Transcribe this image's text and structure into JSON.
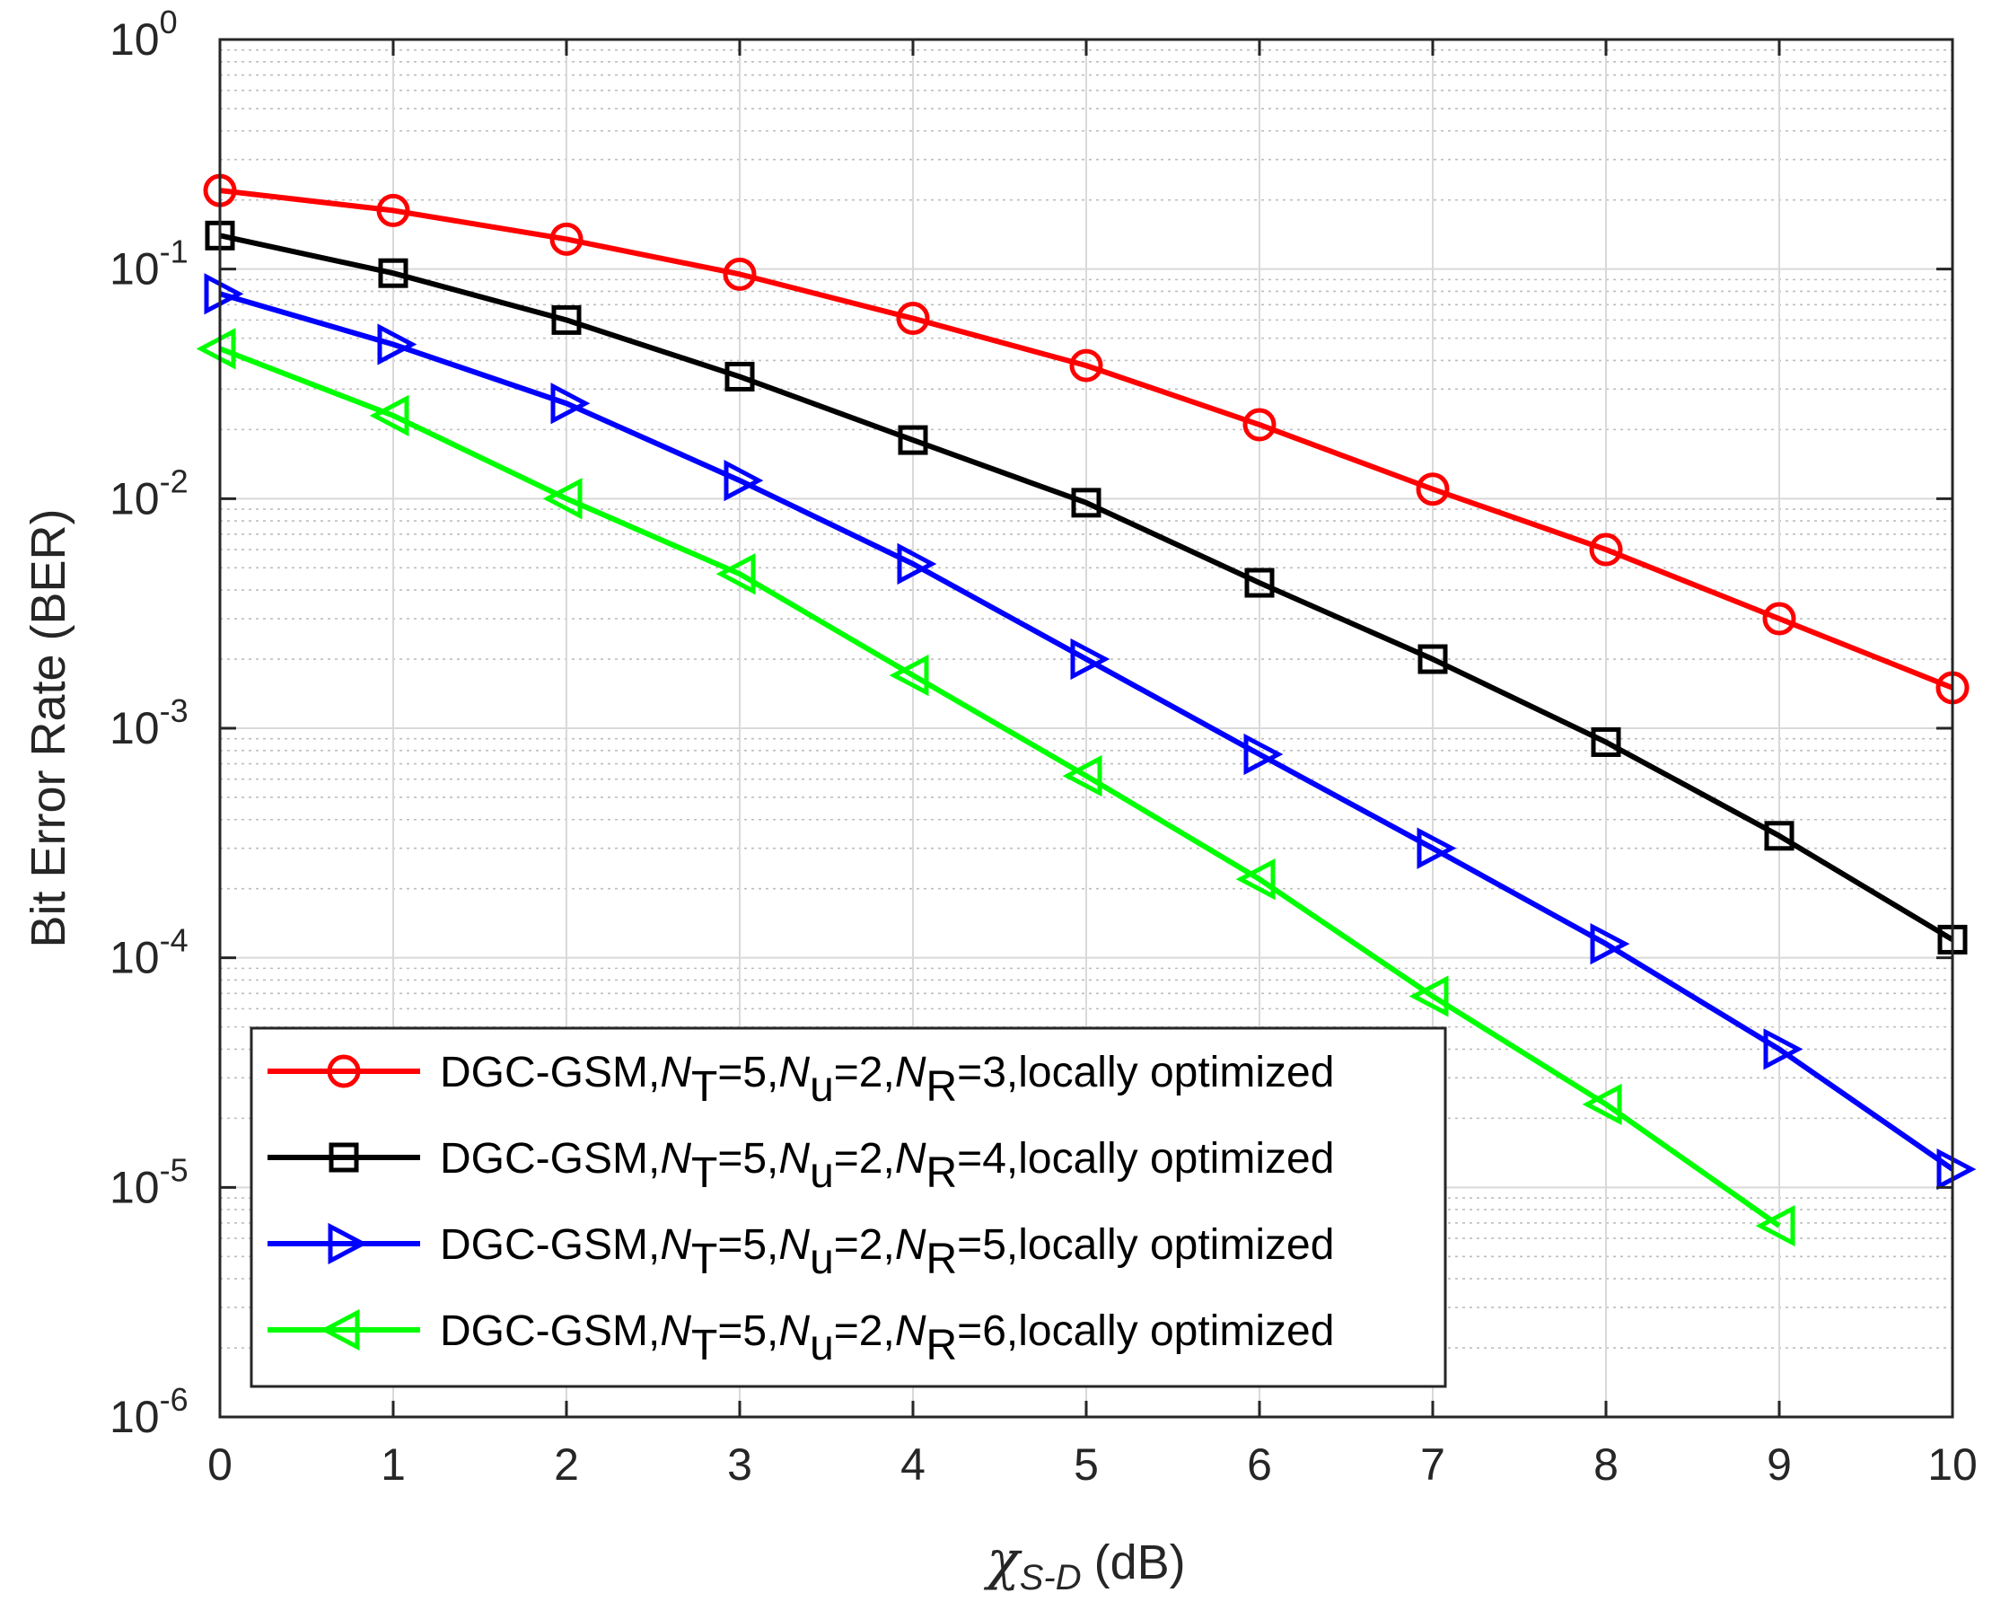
{
  "chart_data": {
    "type": "line",
    "title": "",
    "xlabel": {
      "symbol": "χ",
      "subscript": "S-D",
      "unit": "(dB)"
    },
    "ylabel": "Bit Error Rate (BER)",
    "xlim": [
      0,
      10
    ],
    "ylim": [
      1e-06,
      1
    ],
    "yscale": "log",
    "grid": true,
    "minor_grid": true,
    "legend_position": "bottom-left",
    "x_ticks": [
      "0",
      "1",
      "2",
      "3",
      "4",
      "5",
      "6",
      "7",
      "8",
      "9",
      "10"
    ],
    "y_ticks": [
      {
        "base": "10",
        "exp": "0"
      },
      {
        "base": "10",
        "exp": "-1"
      },
      {
        "base": "10",
        "exp": "-2"
      },
      {
        "base": "10",
        "exp": "-3"
      },
      {
        "base": "10",
        "exp": "-4"
      },
      {
        "base": "10",
        "exp": "-5"
      },
      {
        "base": "10",
        "exp": "-6"
      }
    ],
    "series": [
      {
        "name": "DGC-GSM,NT=5,Nu=2,NR=3,locally optimized",
        "label": {
          "prefix": "DGC-GSM,",
          "nt": "5",
          "nu": "2",
          "nr": "3",
          "suffix": ",locally optimized"
        },
        "color": "#ff0000",
        "marker": "circle",
        "x": [
          0,
          1,
          2,
          3,
          4,
          5,
          6,
          7,
          8,
          9,
          10
        ],
        "values": [
          0.22,
          0.18,
          0.135,
          0.095,
          0.061,
          0.038,
          0.021,
          0.011,
          0.006,
          0.003,
          0.0015
        ]
      },
      {
        "name": "DGC-GSM,NT=5,Nu=2,NR=4,locally optimized",
        "label": {
          "prefix": "DGC-GSM,",
          "nt": "5",
          "nu": "2",
          "nr": "4",
          "suffix": ",locally optimized"
        },
        "color": "#000000",
        "marker": "square",
        "x": [
          0,
          1,
          2,
          3,
          4,
          5,
          6,
          7,
          8,
          9,
          10
        ],
        "values": [
          0.14,
          0.096,
          0.06,
          0.034,
          0.018,
          0.0096,
          0.0043,
          0.002,
          0.00087,
          0.00034,
          0.00012
        ]
      },
      {
        "name": "DGC-GSM,NT=5,Nu=2,NR=5,locally optimized",
        "label": {
          "prefix": "DGC-GSM,",
          "nt": "5",
          "nu": "2",
          "nr": "5",
          "suffix": ",locally optimized"
        },
        "color": "#0000ff",
        "marker": "triangle-right",
        "x": [
          0,
          1,
          2,
          3,
          4,
          5,
          6,
          7,
          8,
          9,
          10
        ],
        "values": [
          0.078,
          0.047,
          0.026,
          0.012,
          0.0052,
          0.002,
          0.00077,
          0.0003,
          0.000115,
          4e-05,
          1.2e-05
        ]
      },
      {
        "name": "DGC-GSM,NT=5,Nu=2,NR=6,locally optimized",
        "label": {
          "prefix": "DGC-GSM,",
          "nt": "5",
          "nu": "2",
          "nr": "6",
          "suffix": ",locally optimized"
        },
        "color": "#00ff00",
        "marker": "triangle-left",
        "x": [
          0,
          1,
          2,
          3,
          4,
          5,
          6,
          7,
          8,
          9
        ],
        "values": [
          0.045,
          0.023,
          0.01,
          0.0047,
          0.0017,
          0.00062,
          0.00022,
          6.8e-05,
          2.3e-05,
          6.8e-06
        ]
      }
    ]
  }
}
